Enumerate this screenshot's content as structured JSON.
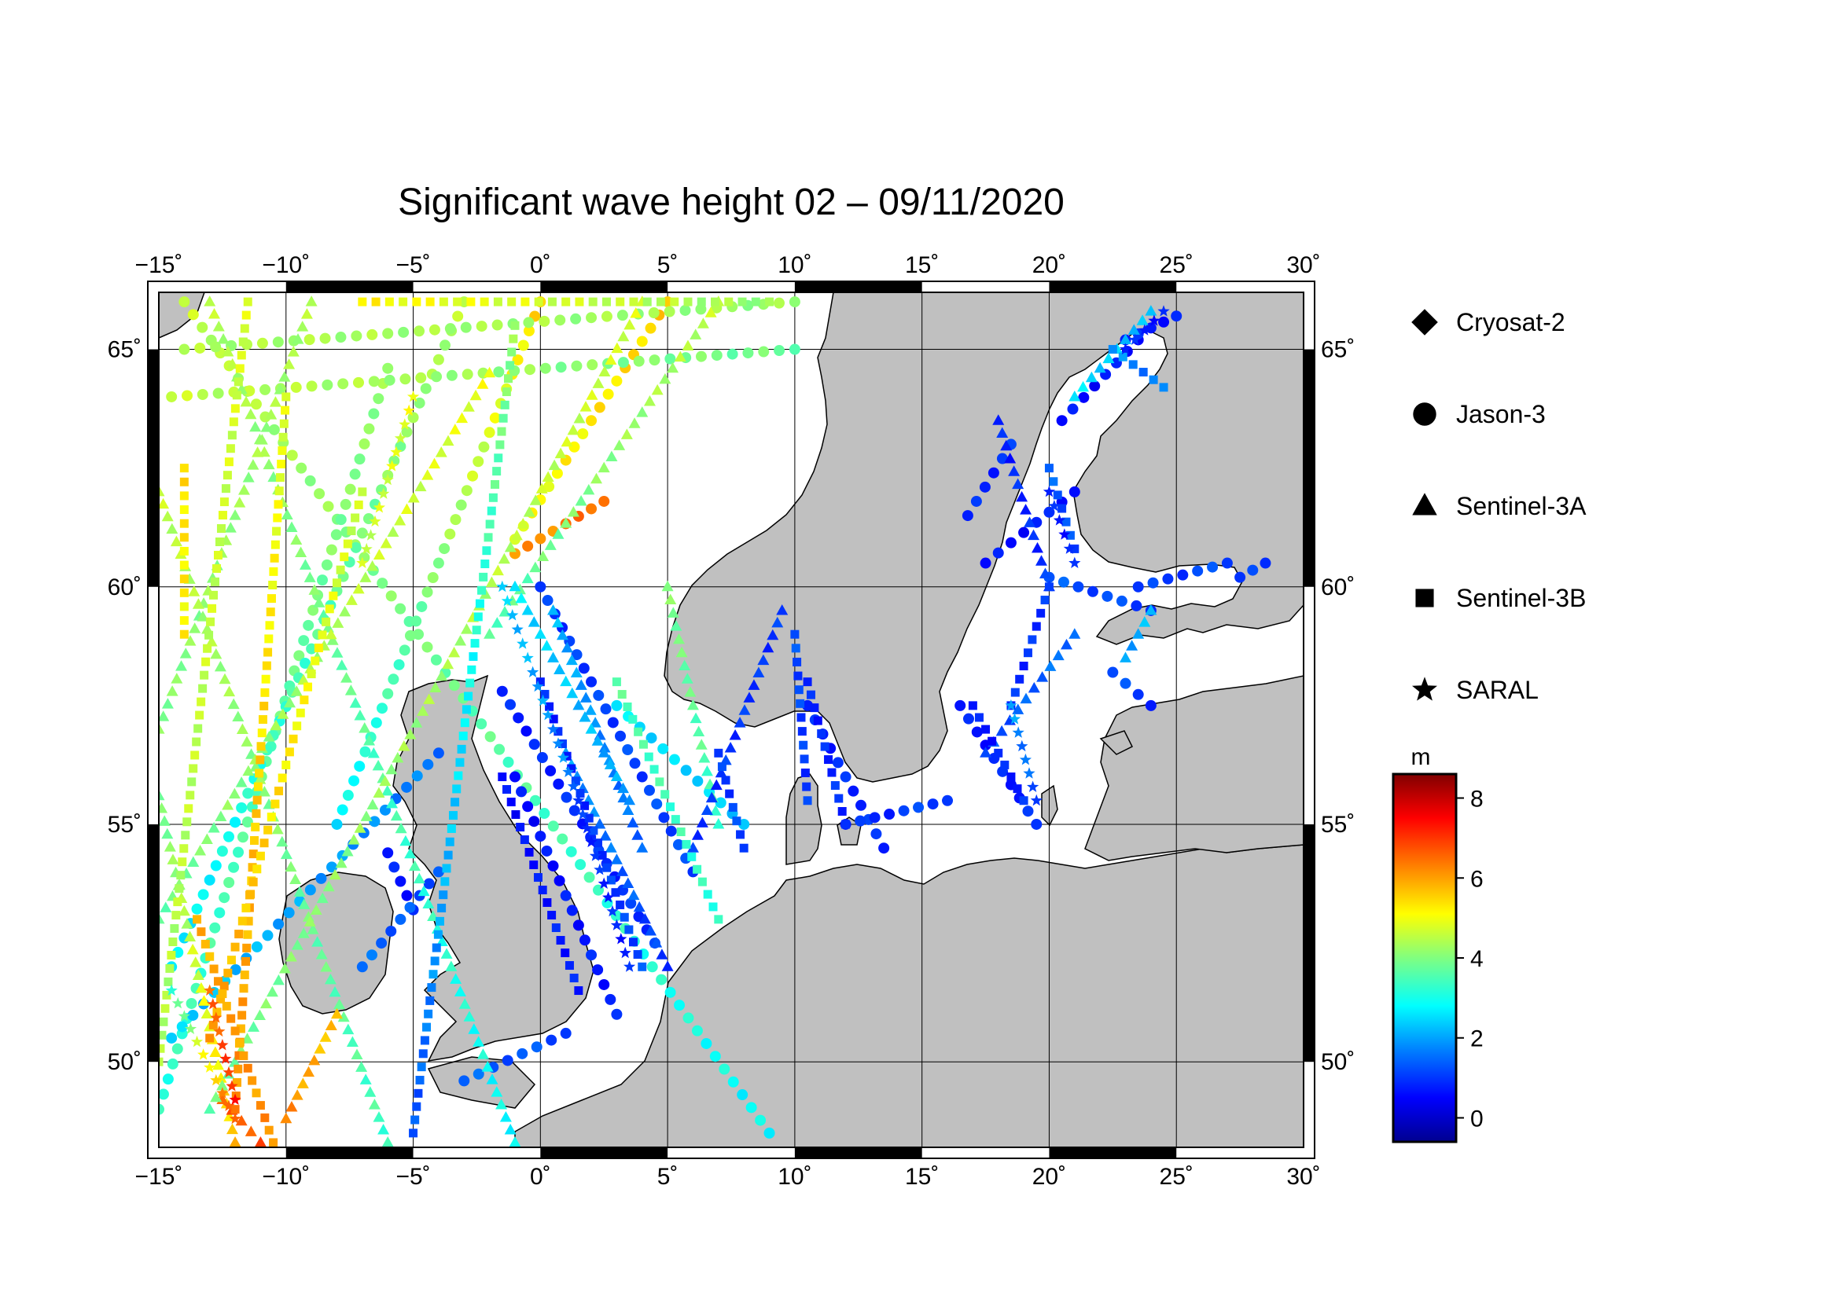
{
  "title": "Significant wave height 02 – 09/11/2020",
  "map": {
    "lon_range": [
      -15,
      30
    ],
    "lat_range": [
      48.2,
      66.2
    ],
    "lon_ticks": [
      -15,
      -10,
      -5,
      0,
      5,
      10,
      15,
      20,
      25,
      30
    ],
    "lon_tick_labels": [
      "−15˚",
      "−10˚",
      "−5˚",
      "0˚",
      "5˚",
      "10˚",
      "15˚",
      "20˚",
      "25˚",
      "30˚"
    ],
    "lat_ticks": [
      50,
      55,
      60,
      65
    ],
    "lat_tick_labels": [
      "50˚",
      "55˚",
      "60˚",
      "65˚"
    ],
    "land_color": "#c0c0c0",
    "sea_color": "#ffffff"
  },
  "legend": {
    "satellites": [
      {
        "name": "Cryosat-2",
        "symbol": "diamond-icon"
      },
      {
        "name": "Jason-3",
        "symbol": "circle-icon"
      },
      {
        "name": "Sentinel-3A",
        "symbol": "triangle-icon"
      },
      {
        "name": "Sentinel-3B",
        "symbol": "square-icon"
      },
      {
        "name": "SARAL",
        "symbol": "star-icon"
      }
    ]
  },
  "colorbar": {
    "unit": "m",
    "range": [
      -0.6,
      8.6
    ],
    "ticks": [
      0,
      2,
      4,
      6,
      8
    ],
    "tick_labels": [
      "0",
      "2",
      "4",
      "6",
      "8"
    ],
    "colormap": [
      "#00008f",
      "#0000ff",
      "#0080ff",
      "#00ffff",
      "#80ff80",
      "#ffff00",
      "#ff8000",
      "#ff0000",
      "#800000"
    ]
  },
  "tracks": [
    {
      "sat": "Jason-3",
      "start": [
        -14,
        66
      ],
      "end": [
        9,
        48.5
      ],
      "v0": 4.6,
      "v1": 2.8
    },
    {
      "sat": "Jason-3",
      "start": [
        -6,
        64.6
      ],
      "end": [
        -15,
        49
      ],
      "v0": 4.2,
      "v1": 3.2
    },
    {
      "sat": "Jason-3",
      "start": [
        -3,
        66
      ],
      "end": [
        -14.5,
        52
      ],
      "v0": 4.5,
      "v1": 2.6
    },
    {
      "sat": "Jason-3",
      "start": [
        0,
        66
      ],
      "end": [
        -8,
        55
      ],
      "v0": 5.5,
      "v1": 2.7
    },
    {
      "sat": "Jason-3",
      "start": [
        5,
        66
      ],
      "end": [
        -1,
        61
      ],
      "v0": 5.6,
      "v1": 5.0
    },
    {
      "sat": "Jason-3",
      "start": [
        -14,
        65
      ],
      "end": [
        10,
        66
      ],
      "v0": 4.4,
      "v1": 4.2
    },
    {
      "sat": "Jason-3",
      "start": [
        -1,
        60.7
      ],
      "end": [
        2.5,
        61.8
      ],
      "v0": 6.0,
      "v1": 6.6
    },
    {
      "sat": "Jason-3",
      "start": [
        -14.5,
        64
      ],
      "end": [
        10,
        65
      ],
      "v0": 4.6,
      "v1": 3.8
    },
    {
      "sat": "Jason-3",
      "start": [
        0,
        60
      ],
      "end": [
        6,
        54
      ],
      "v0": 1.0,
      "v1": 1.2
    },
    {
      "sat": "Jason-3",
      "start": [
        -1.5,
        57.8
      ],
      "end": [
        4.5,
        52.5
      ],
      "v0": 0.8,
      "v1": 1.0
    },
    {
      "sat": "Jason-3",
      "start": [
        -1,
        56
      ],
      "end": [
        3,
        51
      ],
      "v0": 0.6,
      "v1": 0.8
    },
    {
      "sat": "Jason-3",
      "start": [
        -14.5,
        50.5
      ],
      "end": [
        -4,
        56.5
      ],
      "v0": 2.4,
      "v1": 1.6
    },
    {
      "sat": "Jason-3",
      "start": [
        -6,
        54.4
      ],
      "end": [
        -5,
        53.2
      ],
      "v0": 0.7,
      "v1": 0.8
    },
    {
      "sat": "Jason-3",
      "start": [
        -7,
        52
      ],
      "end": [
        -4,
        54
      ],
      "v0": 1.5,
      "v1": 1.2
    },
    {
      "sat": "Jason-3",
      "start": [
        -3,
        49.6
      ],
      "end": [
        1,
        50.6
      ],
      "v0": 1.4,
      "v1": 1.2
    },
    {
      "sat": "Jason-3",
      "start": [
        3,
        57.5
      ],
      "end": [
        8,
        55
      ],
      "v0": 2.6,
      "v1": 2.4
    },
    {
      "sat": "Jason-3",
      "start": [
        10.5,
        57.5
      ],
      "end": [
        13.5,
        54.5
      ],
      "v0": 0.8,
      "v1": 1.0
    },
    {
      "sat": "Jason-3",
      "start": [
        12,
        55
      ],
      "end": [
        16,
        55.5
      ],
      "v0": 0.8,
      "v1": 1.2
    },
    {
      "sat": "Jason-3",
      "start": [
        16.5,
        57.5
      ],
      "end": [
        19.5,
        55
      ],
      "v0": 0.7,
      "v1": 0.9
    },
    {
      "sat": "Jason-3",
      "start": [
        17.5,
        60.5
      ],
      "end": [
        21,
        62
      ],
      "v0": 0.6,
      "v1": 0.8
    },
    {
      "sat": "Jason-3",
      "start": [
        16.8,
        61.5
      ],
      "end": [
        18.5,
        63
      ],
      "v0": 0.8,
      "v1": 1.0
    },
    {
      "sat": "Jason-3",
      "start": [
        20.5,
        63.5
      ],
      "end": [
        23.5,
        65.2
      ],
      "v0": 0.6,
      "v1": 0.7
    },
    {
      "sat": "Jason-3",
      "start": [
        23,
        65.2
      ],
      "end": [
        25,
        65.7
      ],
      "v0": 0.8,
      "v1": 0.8
    },
    {
      "sat": "Jason-3",
      "start": [
        20,
        60.2
      ],
      "end": [
        24,
        59.5
      ],
      "v0": 1.3,
      "v1": 1.1
    },
    {
      "sat": "Jason-3",
      "start": [
        23.5,
        60
      ],
      "end": [
        27,
        60.5
      ],
      "v0": 1.0,
      "v1": 1.2
    },
    {
      "sat": "Jason-3",
      "start": [
        27.5,
        60.2
      ],
      "end": [
        28.5,
        60.5
      ],
      "v0": 1.0,
      "v1": 1.0
    },
    {
      "sat": "Jason-3",
      "start": [
        22.5,
        58.2
      ],
      "end": [
        24,
        57.5
      ],
      "v0": 1.2,
      "v1": 1.0
    },
    {
      "sat": "Sentinel-3A",
      "start": [
        -13,
        66
      ],
      "end": [
        -1,
        48.3
      ],
      "v0": 4.5,
      "v1": 2.8
    },
    {
      "sat": "Sentinel-3A",
      "start": [
        -9,
        66
      ],
      "end": [
        -15,
        57
      ],
      "v0": 4.4,
      "v1": 4.0
    },
    {
      "sat": "Sentinel-3A",
      "start": [
        -15,
        62
      ],
      "end": [
        -6,
        48.3
      ],
      "v0": 4.6,
      "v1": 3.4
    },
    {
      "sat": "Sentinel-3A",
      "start": [
        -15,
        55.6
      ],
      "end": [
        -12,
        48.3
      ],
      "v0": 3.8,
      "v1": 5.7
    },
    {
      "sat": "Sentinel-3A",
      "start": [
        -12.5,
        49.2
      ],
      "end": [
        -11,
        48.3
      ],
      "v0": 6.5,
      "v1": 6.8
    },
    {
      "sat": "Sentinel-3A",
      "start": [
        -10,
        48.8
      ],
      "end": [
        -8,
        51
      ],
      "v0": 6.2,
      "v1": 5.6
    },
    {
      "sat": "Sentinel-3A",
      "start": [
        -2,
        64.5
      ],
      "end": [
        -15,
        53
      ],
      "v0": 5.0,
      "v1": 3.8
    },
    {
      "sat": "Sentinel-3A",
      "start": [
        4,
        66
      ],
      "end": [
        -13,
        49
      ],
      "v0": 4.8,
      "v1": 3.8
    },
    {
      "sat": "Sentinel-3A",
      "start": [
        7,
        66
      ],
      "end": [
        -2,
        59
      ],
      "v0": 4.6,
      "v1": 3.6
    },
    {
      "sat": "Sentinel-3A",
      "start": [
        1,
        56.5
      ],
      "end": [
        5,
        52
      ],
      "v0": 2.0,
      "v1": 1.0
    },
    {
      "sat": "Sentinel-3A",
      "start": [
        0.5,
        59.5
      ],
      "end": [
        4,
        54.5
      ],
      "v0": 2.2,
      "v1": 1.4
    },
    {
      "sat": "Sentinel-3A",
      "start": [
        -1,
        60
      ],
      "end": [
        3.5,
        55.5
      ],
      "v0": 2.6,
      "v1": 2.0
    },
    {
      "sat": "Sentinel-3A",
      "start": [
        5,
        60
      ],
      "end": [
        7,
        55
      ],
      "v0": 4.0,
      "v1": 3.4
    },
    {
      "sat": "Sentinel-3A",
      "start": [
        9.5,
        59.5
      ],
      "end": [
        6,
        54.5
      ],
      "v0": 1.0,
      "v1": 1.0
    },
    {
      "sat": "Sentinel-3A",
      "start": [
        17.5,
        56.5
      ],
      "end": [
        21,
        59
      ],
      "v0": 1.2,
      "v1": 1.6
    },
    {
      "sat": "Sentinel-3A",
      "start": [
        20,
        60
      ],
      "end": [
        18,
        63.5
      ],
      "v0": 1.0,
      "v1": 0.8
    },
    {
      "sat": "Sentinel-3A",
      "start": [
        21,
        64
      ],
      "end": [
        24,
        65.8
      ],
      "v0": 2.6,
      "v1": 2.2
    },
    {
      "sat": "Sentinel-3A",
      "start": [
        24,
        59.5
      ],
      "end": [
        23,
        58.5
      ],
      "v0": 2.2,
      "v1": 2.0
    },
    {
      "sat": "Sentinel-3B",
      "start": [
        -11.5,
        66
      ],
      "end": [
        -15,
        50
      ],
      "v0": 4.8,
      "v1": 4.4
    },
    {
      "sat": "Sentinel-3B",
      "start": [
        -10,
        64
      ],
      "end": [
        -12,
        49
      ],
      "v0": 4.8,
      "v1": 6.2
    },
    {
      "sat": "Sentinel-3B",
      "start": [
        -7,
        62
      ],
      "end": [
        -13,
        50.5
      ],
      "v0": 4.6,
      "v1": 6.0
    },
    {
      "sat": "Sentinel-3B",
      "start": [
        -13.5,
        53
      ],
      "end": [
        -10.5,
        48.3
      ],
      "v0": 5.8,
      "v1": 6.2
    },
    {
      "sat": "Sentinel-3B",
      "start": [
        -1,
        65.5
      ],
      "end": [
        -5,
        48.5
      ],
      "v0": 4.2,
      "v1": 1.2
    },
    {
      "sat": "Sentinel-3B",
      "start": [
        0,
        58
      ],
      "end": [
        4,
        52
      ],
      "v0": 0.8,
      "v1": 1.2
    },
    {
      "sat": "Sentinel-3B",
      "start": [
        -1.5,
        56
      ],
      "end": [
        1.5,
        51.5
      ],
      "v0": 0.6,
      "v1": 0.8
    },
    {
      "sat": "Sentinel-3B",
      "start": [
        3,
        58
      ],
      "end": [
        7,
        53
      ],
      "v0": 3.6,
      "v1": 3.2
    },
    {
      "sat": "Sentinel-3B",
      "start": [
        7,
        56.5
      ],
      "end": [
        8,
        54.5
      ],
      "v0": 1.0,
      "v1": 1.2
    },
    {
      "sat": "Sentinel-3B",
      "start": [
        10,
        59
      ],
      "end": [
        10.5,
        55.5
      ],
      "v0": 1.2,
      "v1": 1.0
    },
    {
      "sat": "Sentinel-3B",
      "start": [
        10.5,
        58
      ],
      "end": [
        12,
        55
      ],
      "v0": 0.8,
      "v1": 1.0
    },
    {
      "sat": "Sentinel-3B",
      "start": [
        17,
        57.5
      ],
      "end": [
        19,
        55.5
      ],
      "v0": 0.7,
      "v1": 0.9
    },
    {
      "sat": "Sentinel-3B",
      "start": [
        18.5,
        57.5
      ],
      "end": [
        20,
        60
      ],
      "v0": 0.9,
      "v1": 1.0
    },
    {
      "sat": "Sentinel-3B",
      "start": [
        20,
        62.5
      ],
      "end": [
        21,
        60.8
      ],
      "v0": 1.4,
      "v1": 1.2
    },
    {
      "sat": "Sentinel-3B",
      "start": [
        22.5,
        65
      ],
      "end": [
        24.5,
        64.2
      ],
      "v0": 1.8,
      "v1": 1.6
    },
    {
      "sat": "Sentinel-3B",
      "start": [
        -7,
        66
      ],
      "end": [
        9,
        66
      ],
      "v0": 5.2,
      "v1": 4.2
    },
    {
      "sat": "Sentinel-3B",
      "start": [
        -14,
        62.5
      ],
      "end": [
        -14,
        59
      ],
      "v0": 5.4,
      "v1": 5.2
    },
    {
      "sat": "SARAL",
      "start": [
        -14.5,
        51.5
      ],
      "end": [
        -12,
        48.8
      ],
      "v0": 3.2,
      "v1": 6.8
    },
    {
      "sat": "SARAL",
      "start": [
        -13,
        51.5
      ],
      "end": [
        -12,
        49.2
      ],
      "v0": 6.4,
      "v1": 7.2
    },
    {
      "sat": "SARAL",
      "start": [
        -5,
        64
      ],
      "end": [
        -7,
        60.5
      ],
      "v0": 5.0,
      "v1": 4.6
    },
    {
      "sat": "SARAL",
      "start": [
        -1.5,
        60
      ],
      "end": [
        1.5,
        55.5
      ],
      "v0": 2.4,
      "v1": 1.6
    },
    {
      "sat": "SARAL",
      "start": [
        1.5,
        55.5
      ],
      "end": [
        3.5,
        52
      ],
      "v0": 1.0,
      "v1": 0.8
    },
    {
      "sat": "SARAL",
      "start": [
        18.5,
        57.5
      ],
      "end": [
        19.5,
        55.5
      ],
      "v0": 2.0,
      "v1": 1.2
    },
    {
      "sat": "SARAL",
      "start": [
        20,
        62
      ],
      "end": [
        21,
        60.5
      ],
      "v0": 0.8,
      "v1": 0.8
    },
    {
      "sat": "SARAL",
      "start": [
        23,
        65
      ],
      "end": [
        24.5,
        65.8
      ],
      "v0": 0.8,
      "v1": 0.8
    }
  ]
}
